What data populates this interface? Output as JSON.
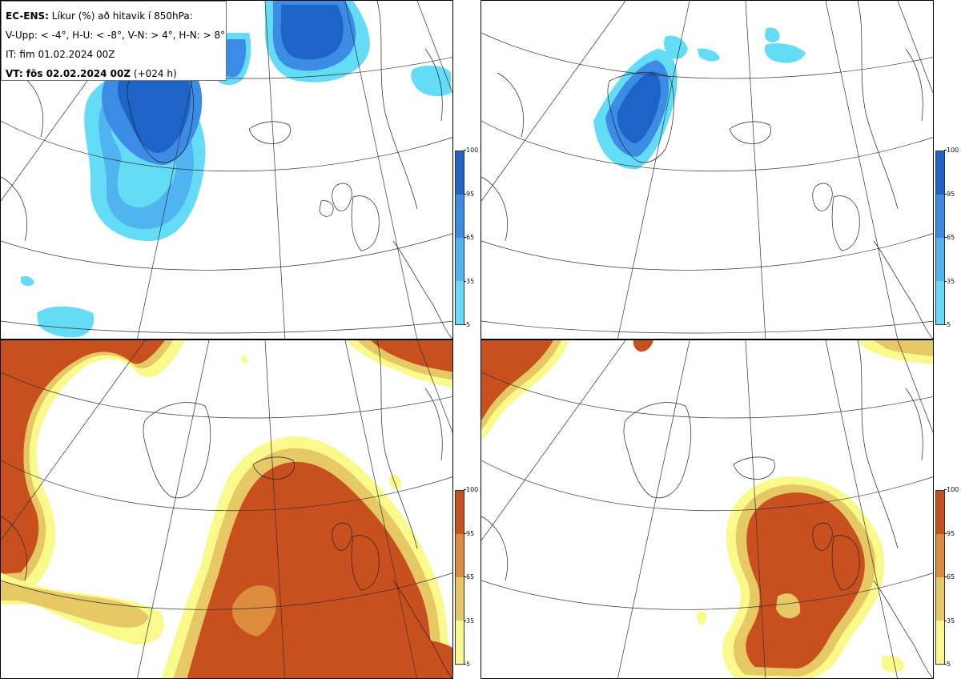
{
  "header": {
    "title_bold": "EC-ENS:",
    "title_rest": " Líkur (%) að hitavik í 850hPa:",
    "line2": "V-Upp: < -4°, H-U: < -8°, V-N: > 4°, H-N: > 8°",
    "line3": "IT: fim 01.02.2024 00Z",
    "line4_bold": "VT: fös 02.02.2024 00Z",
    "line4_rest": " (+024 h)"
  },
  "colorbars": {
    "cold": {
      "ticks": [
        "100",
        "95",
        "65",
        "35",
        "5"
      ],
      "colors": [
        "#1e64c8",
        "#3c8ce6",
        "#50b4f0",
        "#64dcf5"
      ]
    },
    "warm": {
      "ticks": [
        "100",
        "95",
        "65",
        "35",
        "5"
      ],
      "colors": [
        "#c8501e",
        "#dc8c3c",
        "#e6c864",
        "#fafa8c"
      ]
    }
  },
  "panels": [
    {
      "id": "upper-left",
      "variable": "V-Upp",
      "scale": "cold"
    },
    {
      "id": "upper-right",
      "variable": "H-U",
      "scale": "cold"
    },
    {
      "id": "lower-left",
      "variable": "V-N",
      "scale": "warm"
    },
    {
      "id": "lower-right",
      "variable": "H-N",
      "scale": "warm"
    }
  ]
}
